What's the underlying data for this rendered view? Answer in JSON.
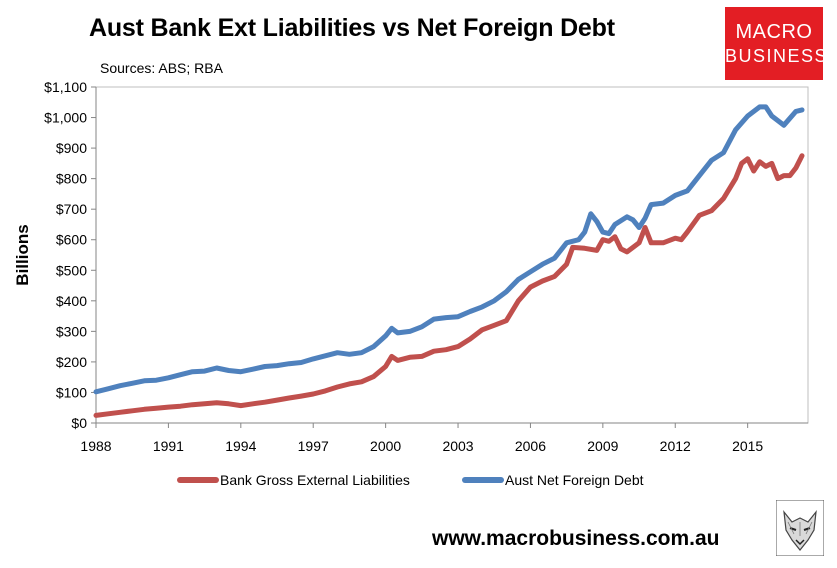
{
  "header": {
    "title": "Aust Bank Ext Liabilities vs Net Foreign Debt",
    "subtitle": "Sources: ABS; RBA"
  },
  "logo": {
    "line1": "MACRO",
    "line2": "BUSINESS"
  },
  "footer": {
    "website": "www.macrobusiness.com.au"
  },
  "chart_data": {
    "type": "line",
    "title": "Aust Bank Ext Liabilities vs Net Foreign Debt",
    "subtitle": "Sources: ABS; RBA",
    "xlabel": "",
    "ylabel": "Billions",
    "xlim": [
      1988,
      2017.5
    ],
    "ylim": [
      0,
      1100
    ],
    "xticks": [
      1988,
      1991,
      1994,
      1997,
      2000,
      2003,
      2006,
      2009,
      2012,
      2015
    ],
    "xtick_labels": [
      "1988",
      "1991",
      "1994",
      "1997",
      "2000",
      "2003",
      "2006",
      "2009",
      "2012",
      "2015"
    ],
    "yticks": [
      0,
      100,
      200,
      300,
      400,
      500,
      600,
      700,
      800,
      900,
      1000,
      1100
    ],
    "ytick_labels": [
      "$0",
      "$100",
      "$200",
      "$300",
      "$400",
      "$500",
      "$600",
      "$700",
      "$800",
      "$900",
      "$1,000",
      "$1,100"
    ],
    "grid": false,
    "legend_position": "bottom",
    "series": [
      {
        "name": "Bank Gross External Liabilities",
        "color": "#c0504d",
        "points": [
          [
            1988.0,
            25
          ],
          [
            1988.5,
            30
          ],
          [
            1989.0,
            35
          ],
          [
            1989.5,
            40
          ],
          [
            1990.0,
            45
          ],
          [
            1990.5,
            48
          ],
          [
            1991.0,
            52
          ],
          [
            1991.5,
            55
          ],
          [
            1992.0,
            60
          ],
          [
            1992.5,
            63
          ],
          [
            1993.0,
            66
          ],
          [
            1993.5,
            63
          ],
          [
            1994.0,
            57
          ],
          [
            1994.5,
            63
          ],
          [
            1995.0,
            68
          ],
          [
            1995.5,
            75
          ],
          [
            1996.0,
            82
          ],
          [
            1996.5,
            88
          ],
          [
            1997.0,
            95
          ],
          [
            1997.5,
            105
          ],
          [
            1998.0,
            118
          ],
          [
            1998.5,
            128
          ],
          [
            1999.0,
            135
          ],
          [
            1999.5,
            152
          ],
          [
            2000.0,
            185
          ],
          [
            2000.25,
            218
          ],
          [
            2000.5,
            205
          ],
          [
            2001.0,
            215
          ],
          [
            2001.5,
            218
          ],
          [
            2002.0,
            235
          ],
          [
            2002.5,
            240
          ],
          [
            2003.0,
            250
          ],
          [
            2003.5,
            275
          ],
          [
            2004.0,
            305
          ],
          [
            2004.5,
            320
          ],
          [
            2005.0,
            335
          ],
          [
            2005.5,
            400
          ],
          [
            2006.0,
            445
          ],
          [
            2006.5,
            465
          ],
          [
            2007.0,
            480
          ],
          [
            2007.5,
            520
          ],
          [
            2007.75,
            575
          ],
          [
            2008.25,
            572
          ],
          [
            2008.75,
            565
          ],
          [
            2009.0,
            600
          ],
          [
            2009.25,
            595
          ],
          [
            2009.5,
            610
          ],
          [
            2009.75,
            570
          ],
          [
            2010.0,
            560
          ],
          [
            2010.5,
            590
          ],
          [
            2010.75,
            640
          ],
          [
            2011.0,
            590
          ],
          [
            2011.5,
            590
          ],
          [
            2012.0,
            605
          ],
          [
            2012.25,
            600
          ],
          [
            2012.5,
            625
          ],
          [
            2013.0,
            680
          ],
          [
            2013.5,
            695
          ],
          [
            2014.0,
            735
          ],
          [
            2014.5,
            800
          ],
          [
            2014.75,
            850
          ],
          [
            2015.0,
            865
          ],
          [
            2015.25,
            825
          ],
          [
            2015.5,
            855
          ],
          [
            2015.75,
            840
          ],
          [
            2016.0,
            850
          ],
          [
            2016.25,
            800
          ],
          [
            2016.5,
            810
          ],
          [
            2016.75,
            810
          ],
          [
            2017.0,
            835
          ],
          [
            2017.25,
            875
          ]
        ]
      },
      {
        "name": "Aust Net Foreign Debt",
        "color": "#4f81bd",
        "points": [
          [
            1988.0,
            102
          ],
          [
            1988.5,
            112
          ],
          [
            1989.0,
            122
          ],
          [
            1989.5,
            130
          ],
          [
            1990.0,
            138
          ],
          [
            1990.5,
            140
          ],
          [
            1991.0,
            148
          ],
          [
            1991.5,
            158
          ],
          [
            1992.0,
            168
          ],
          [
            1992.5,
            170
          ],
          [
            1993.0,
            180
          ],
          [
            1993.5,
            172
          ],
          [
            1994.0,
            168
          ],
          [
            1994.5,
            176
          ],
          [
            1995.0,
            185
          ],
          [
            1995.5,
            188
          ],
          [
            1996.0,
            194
          ],
          [
            1996.5,
            198
          ],
          [
            1997.0,
            210
          ],
          [
            1997.5,
            220
          ],
          [
            1998.0,
            230
          ],
          [
            1998.5,
            225
          ],
          [
            1999.0,
            230
          ],
          [
            1999.5,
            250
          ],
          [
            2000.0,
            285
          ],
          [
            2000.25,
            310
          ],
          [
            2000.5,
            295
          ],
          [
            2001.0,
            300
          ],
          [
            2001.5,
            315
          ],
          [
            2002.0,
            340
          ],
          [
            2002.5,
            345
          ],
          [
            2003.0,
            348
          ],
          [
            2003.5,
            365
          ],
          [
            2004.0,
            380
          ],
          [
            2004.5,
            400
          ],
          [
            2005.0,
            430
          ],
          [
            2005.5,
            470
          ],
          [
            2006.0,
            495
          ],
          [
            2006.5,
            520
          ],
          [
            2007.0,
            540
          ],
          [
            2007.5,
            590
          ],
          [
            2008.0,
            600
          ],
          [
            2008.25,
            625
          ],
          [
            2008.5,
            685
          ],
          [
            2008.75,
            660
          ],
          [
            2009.0,
            625
          ],
          [
            2009.25,
            620
          ],
          [
            2009.5,
            650
          ],
          [
            2010.0,
            675
          ],
          [
            2010.25,
            665
          ],
          [
            2010.5,
            640
          ],
          [
            2010.75,
            670
          ],
          [
            2011.0,
            715
          ],
          [
            2011.5,
            720
          ],
          [
            2012.0,
            745
          ],
          [
            2012.5,
            760
          ],
          [
            2013.0,
            810
          ],
          [
            2013.5,
            860
          ],
          [
            2014.0,
            885
          ],
          [
            2014.5,
            960
          ],
          [
            2015.0,
            1005
          ],
          [
            2015.5,
            1035
          ],
          [
            2015.75,
            1035
          ],
          [
            2016.0,
            1005
          ],
          [
            2016.5,
            975
          ],
          [
            2017.0,
            1020
          ],
          [
            2017.25,
            1025
          ]
        ]
      }
    ]
  }
}
